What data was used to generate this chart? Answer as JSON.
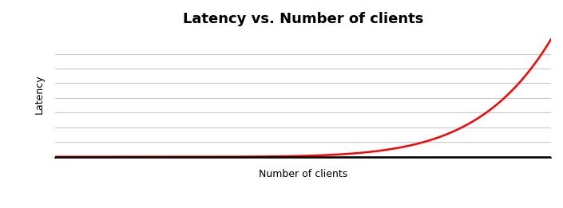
{
  "title": "Latency vs. Number of clients",
  "xlabel": "Number of clients",
  "ylabel": "Latency",
  "line_color": "#ff0000",
  "line_width": 1.8,
  "background_color": "#ffffff",
  "grid_color": "#c8c8c8",
  "axis_color": "#000000",
  "title_fontsize": 13,
  "label_fontsize": 9,
  "num_gridlines": 7,
  "exponent_power": 7.0
}
